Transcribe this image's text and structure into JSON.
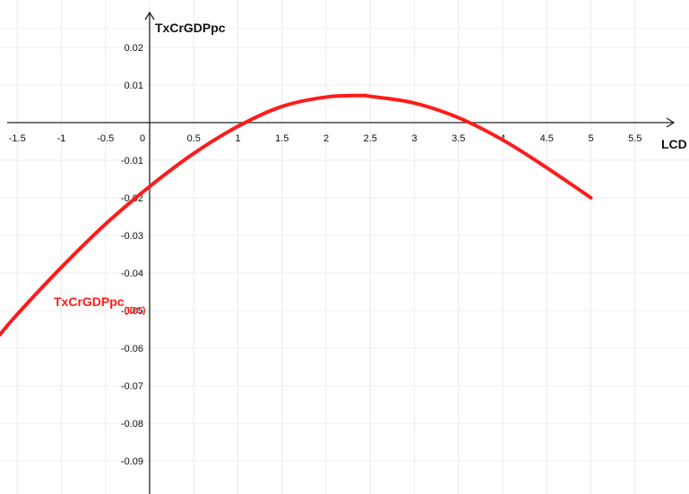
{
  "chart_data": {
    "type": "line",
    "title": "",
    "xlabel": "LCD",
    "ylabel": "TxCrGDPpc",
    "xlim": [
      -1.7,
      5.95
    ],
    "ylim": [
      -0.1,
      0.027
    ],
    "x_ticks": [
      "-1.5",
      "-1",
      "-0.5",
      "0",
      "0.5",
      "1",
      "1.5",
      "2",
      "2.5",
      "3",
      "3.5",
      "4",
      "4.5",
      "5",
      "5.5"
    ],
    "y_ticks": [
      "0.02",
      "0.01",
      "-0.01",
      "-0.02",
      "-0.03",
      "-0.04",
      "-0.05",
      "-0.06",
      "-0.07",
      "-0.08",
      "-0.09"
    ],
    "grid": true,
    "curve_color": "#ff1a1a",
    "series": [
      {
        "name": "TxCrGDPpc",
        "name_subscript": "(IDC)",
        "x": [
          -1.7,
          -1.5,
          -1.0,
          -0.5,
          0.0,
          0.5,
          1.0,
          1.5,
          2.0,
          2.4,
          2.5,
          3.0,
          3.5,
          4.0,
          4.5,
          5.0
        ],
        "y": [
          -0.0565,
          -0.051,
          -0.0385,
          -0.027,
          -0.017,
          -0.0082,
          -0.001,
          0.0043,
          0.0068,
          0.0072,
          0.007,
          0.0052,
          0.0013,
          -0.0046,
          -0.012,
          -0.02
        ]
      }
    ]
  }
}
